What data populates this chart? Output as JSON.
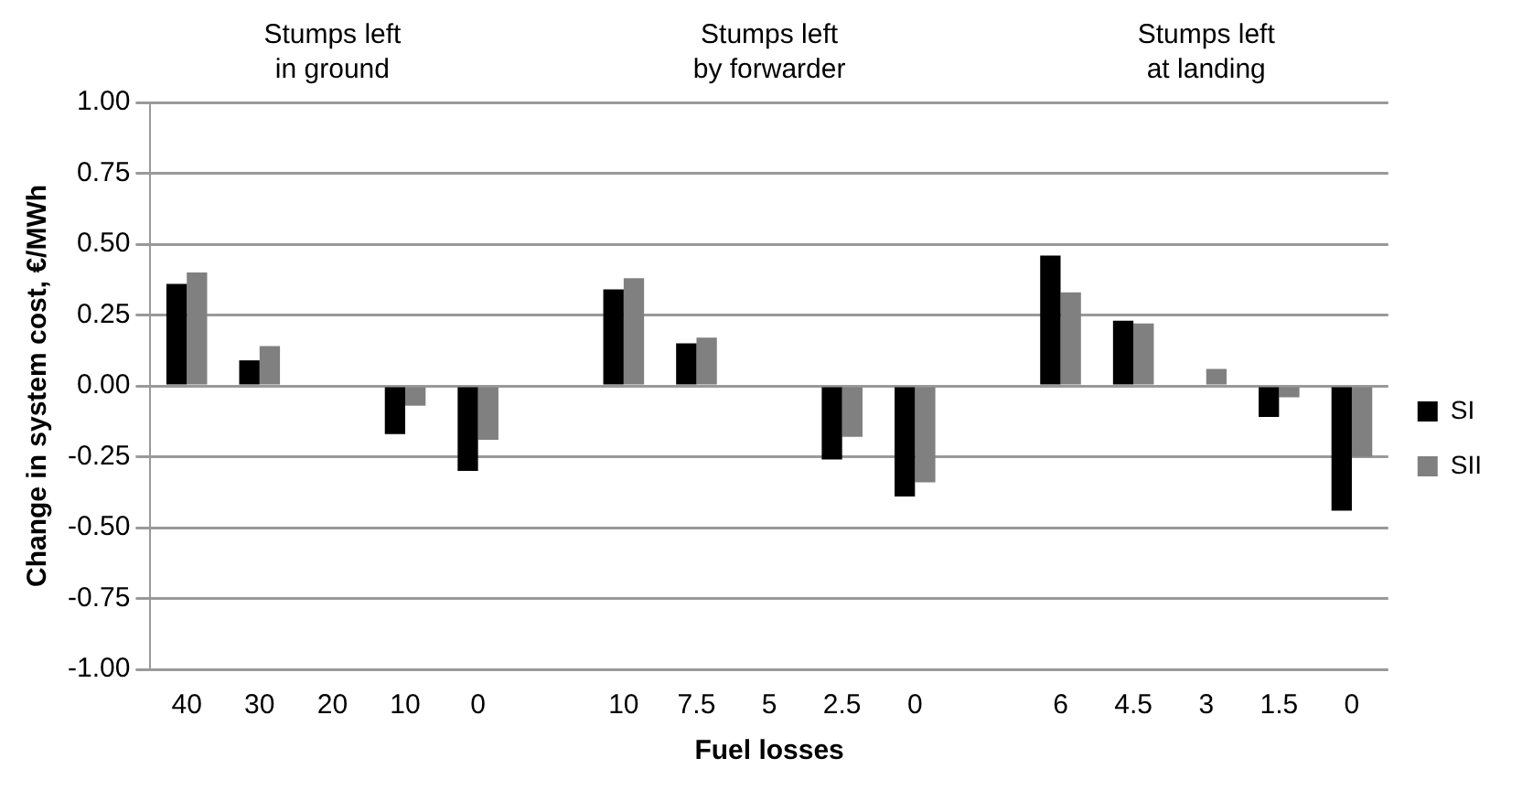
{
  "chart_data": {
    "type": "bar",
    "xlabel": "Fuel losses",
    "ylabel": "Change in system cost, €/MWh",
    "categories": [
      "40",
      "30",
      "20",
      "10",
      "0",
      null,
      "10",
      "7.5",
      "5",
      "2.5",
      "0",
      null,
      "6",
      "4.5",
      "3",
      "1.5",
      "0"
    ],
    "series": [
      {
        "name": "SI",
        "color": "#000000",
        "values": [
          0.36,
          0.09,
          0,
          -0.17,
          -0.3,
          null,
          0.34,
          0.15,
          0,
          -0.26,
          -0.39,
          null,
          0.46,
          0.23,
          0,
          -0.11,
          -0.44
        ]
      },
      {
        "name": "SII",
        "color": "#808080",
        "values": [
          0.4,
          0.14,
          0,
          -0.07,
          -0.19,
          null,
          0.38,
          0.17,
          0,
          -0.18,
          -0.34,
          null,
          0.33,
          0.22,
          0.06,
          -0.04,
          -0.25
        ]
      }
    ],
    "ylim": [
      -1,
      1
    ],
    "yticks": [
      {
        "value": -1,
        "label": "-1.00"
      },
      {
        "value": -0.75,
        "label": "-0.75"
      },
      {
        "value": -0.5,
        "label": "-0.50"
      },
      {
        "value": -0.25,
        "label": "-0.25"
      },
      {
        "value": 0,
        "label": "0.00"
      },
      {
        "value": 0.25,
        "label": "0.25"
      },
      {
        "value": 0.5,
        "label": "0.50"
      },
      {
        "value": 0.75,
        "label": "0.75"
      },
      {
        "value": 1,
        "label": "1.00"
      }
    ],
    "grid": "y",
    "legend": "right",
    "annotations": [
      "Stumps left\nin ground",
      "Stumps left\nby forwarder",
      "Stumps left\nat landing"
    ]
  }
}
